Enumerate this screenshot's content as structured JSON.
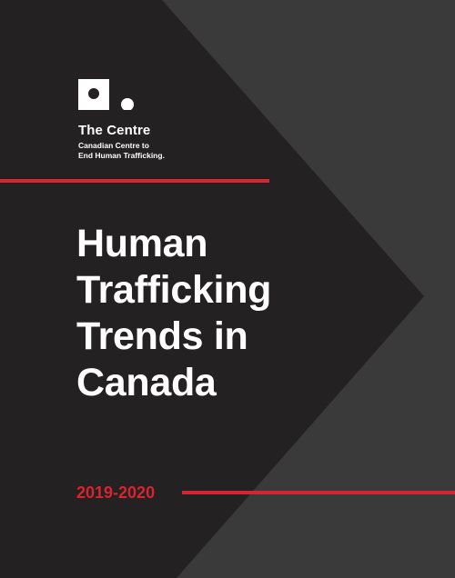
{
  "organization": {
    "name": "The Centre",
    "subtitle_line1": "Canadian Centre to",
    "subtitle_line2": "End Human Trafficking."
  },
  "title": {
    "line1": "Human",
    "line2": "Trafficking",
    "line3": "Trends in",
    "line4": "Canada"
  },
  "year_range": "2019-2020",
  "colors": {
    "background": "#232122",
    "chevron": "#3a3a3a",
    "accent_red": "#d7242f",
    "text": "#ffffff"
  },
  "icons": {
    "logo": "square-with-circle-logo-icon"
  }
}
